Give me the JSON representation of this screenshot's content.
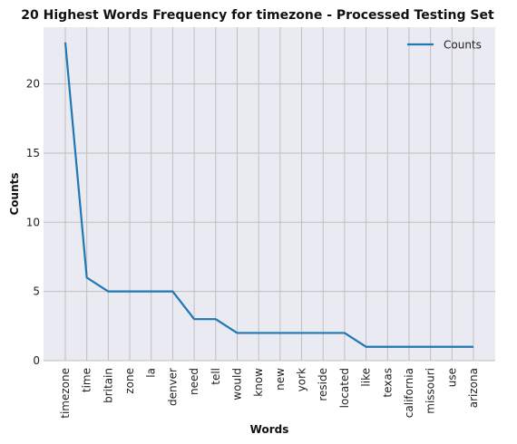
{
  "chart_data": {
    "type": "line",
    "title": "20 Highest Words Frequency for timezone - Processed Testing Set",
    "xlabel": "Words",
    "ylabel": "Counts",
    "categories": [
      "timezone",
      "time",
      "britain",
      "zone",
      "la",
      "denver",
      "need",
      "tell",
      "would",
      "know",
      "new",
      "york",
      "reside",
      "located",
      "like",
      "texas",
      "california",
      "missouri",
      "use",
      "arizona"
    ],
    "series": [
      {
        "name": "Counts",
        "values": [
          23,
          6,
          5,
          5,
          5,
          5,
          3,
          3,
          2,
          2,
          2,
          2,
          2,
          2,
          1,
          1,
          1,
          1,
          1,
          1
        ]
      }
    ],
    "ylim": [
      0,
      24.1
    ],
    "yticks": [
      0,
      5,
      10,
      15,
      20
    ],
    "grid": true,
    "legend": "top-right",
    "colors": {
      "line": "#1f77b4",
      "background": "#eaeaf2",
      "grid": "#bfbfbf"
    }
  }
}
